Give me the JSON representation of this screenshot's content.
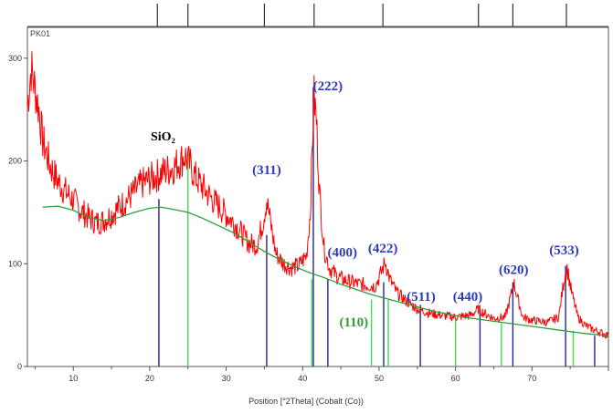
{
  "chart_data": {
    "type": "line",
    "panel_label": "PK01",
    "xlabel": "Position [°2Theta] (Cobalt (Co))",
    "ylabel": "",
    "xlim": [
      4,
      80
    ],
    "ylim": [
      0,
      330
    ],
    "x_ticks": [
      10,
      20,
      30,
      40,
      50,
      60,
      70
    ],
    "y_ticks": [
      0,
      100,
      200,
      300
    ],
    "grid": false,
    "series": [
      {
        "color": "#ff0000",
        "points": [
          [
            4,
            255
          ],
          [
            4.5,
            290
          ],
          [
            5,
            270
          ],
          [
            5.5,
            250
          ],
          [
            6,
            220
          ],
          [
            7,
            195
          ],
          [
            8,
            180
          ],
          [
            9,
            170
          ],
          [
            10,
            162
          ],
          [
            11,
            152
          ],
          [
            12,
            145
          ],
          [
            13,
            140
          ],
          [
            14,
            142
          ],
          [
            15,
            148
          ],
          [
            16,
            155
          ],
          [
            17,
            162
          ],
          [
            18,
            170
          ],
          [
            19,
            178
          ],
          [
            20,
            182
          ],
          [
            21,
            186
          ],
          [
            22,
            190
          ],
          [
            23,
            193
          ],
          [
            24,
            200
          ],
          [
            24.6,
            205
          ],
          [
            25.3,
            196
          ],
          [
            26,
            184
          ],
          [
            27,
            174
          ],
          [
            28,
            164
          ],
          [
            29,
            156
          ],
          [
            30,
            148
          ],
          [
            31,
            140
          ],
          [
            32,
            130
          ],
          [
            33,
            120
          ],
          [
            34,
            118
          ],
          [
            34.8,
            140
          ],
          [
            35.3,
            162
          ],
          [
            35.8,
            140
          ],
          [
            36.5,
            110
          ],
          [
            37.5,
            100
          ],
          [
            38.5,
            96
          ],
          [
            39.5,
            98
          ],
          [
            40.5,
            108
          ],
          [
            41,
            150
          ],
          [
            41.3,
            225
          ],
          [
            41.5,
            262
          ],
          [
            41.8,
            240
          ],
          [
            42.2,
            170
          ],
          [
            42.8,
            115
          ],
          [
            43.5,
            96
          ],
          [
            44.5,
            88
          ],
          [
            45.5,
            84
          ],
          [
            46.5,
            82
          ],
          [
            47.5,
            80
          ],
          [
            48.5,
            79
          ],
          [
            49.5,
            78
          ],
          [
            50.2,
            90
          ],
          [
            50.8,
            102
          ],
          [
            51.4,
            85
          ],
          [
            52.3,
            72
          ],
          [
            53.5,
            64
          ],
          [
            55,
            56
          ],
          [
            56.5,
            52
          ],
          [
            58,
            50
          ],
          [
            60,
            48
          ],
          [
            62,
            50
          ],
          [
            63,
            56
          ],
          [
            63.7,
            52
          ],
          [
            65,
            47
          ],
          [
            66.5,
            48
          ],
          [
            67.3,
            70
          ],
          [
            67.6,
            82
          ],
          [
            68,
            70
          ],
          [
            68.8,
            48
          ],
          [
            70,
            45
          ],
          [
            72,
            43
          ],
          [
            73.5,
            48
          ],
          [
            74.2,
            85
          ],
          [
            74.6,
            96
          ],
          [
            75.1,
            75
          ],
          [
            76,
            48
          ],
          [
            77,
            40
          ],
          [
            78,
            36
          ],
          [
            79,
            33
          ],
          [
            80,
            30
          ]
        ]
      },
      {
        "color": "#2e9e3a",
        "points": [
          [
            6,
            155
          ],
          [
            8,
            156
          ],
          [
            10,
            152
          ],
          [
            12,
            145
          ],
          [
            14,
            142
          ],
          [
            16,
            145
          ],
          [
            18,
            150
          ],
          [
            20,
            154
          ],
          [
            21.5,
            155
          ],
          [
            23,
            153
          ],
          [
            25,
            150
          ],
          [
            27,
            144
          ],
          [
            29,
            137
          ],
          [
            31,
            130
          ],
          [
            33,
            121
          ],
          [
            35,
            112
          ],
          [
            37,
            104
          ],
          [
            39,
            97
          ],
          [
            41,
            91
          ],
          [
            43,
            86
          ],
          [
            45,
            80
          ],
          [
            47,
            75
          ],
          [
            49,
            70
          ],
          [
            51,
            66
          ],
          [
            53,
            62
          ],
          [
            55,
            58
          ],
          [
            57,
            54
          ],
          [
            59,
            51
          ],
          [
            61,
            48
          ],
          [
            63,
            46
          ],
          [
            65,
            44
          ],
          [
            67,
            42
          ],
          [
            69,
            40
          ],
          [
            71,
            38
          ],
          [
            73,
            36
          ],
          [
            75,
            34
          ],
          [
            77,
            32
          ],
          [
            80,
            30
          ]
        ]
      }
    ],
    "reference_lines": {
      "blue": [
        [
          21.2,
          163
        ],
        [
          35.3,
          128
        ],
        [
          41.4,
          272
        ],
        [
          43.3,
          85
        ],
        [
          50.6,
          82
        ],
        [
          55.4,
          60
        ],
        [
          63.2,
          55
        ],
        [
          67.5,
          82
        ],
        [
          74.4,
          98
        ],
        [
          78.2,
          30
        ]
      ],
      "green": [
        [
          25,
          208
        ],
        [
          41.2,
          85
        ],
        [
          49,
          65
        ],
        [
          51.2,
          65
        ],
        [
          60,
          48
        ],
        [
          66,
          42
        ],
        [
          75.4,
          35
        ]
      ]
    },
    "top_markers": [
      21,
      25,
      35,
      41.5,
      50.5,
      63,
      67.5,
      74.5
    ],
    "annotations": {
      "phase_label": "SiO₂",
      "hkl": [
        {
          "text": "(311)",
          "x": 35.3,
          "y": 187,
          "color": "#2b3bbb"
        },
        {
          "text": "(222)",
          "x": 43.3,
          "y": 269,
          "color": "#2b3bbb"
        },
        {
          "text": "(400)",
          "x": 45.2,
          "y": 107,
          "color": "#2b3bbb"
        },
        {
          "text": "(422)",
          "x": 50.5,
          "y": 111,
          "color": "#2b3bbb"
        },
        {
          "text": "(110)",
          "x": 46.7,
          "y": 39,
          "color": "#2f9e2f"
        },
        {
          "text": "(511)",
          "x": 55.5,
          "y": 64,
          "color": "#2b3bbb"
        },
        {
          "text": "(440)",
          "x": 61.6,
          "y": 64,
          "color": "#2b3bbb"
        },
        {
          "text": "(620)",
          "x": 67.6,
          "y": 90,
          "color": "#2b3bbb"
        },
        {
          "text": "(533)",
          "x": 74.2,
          "y": 109,
          "color": "#2b3bbb"
        }
      ]
    }
  }
}
